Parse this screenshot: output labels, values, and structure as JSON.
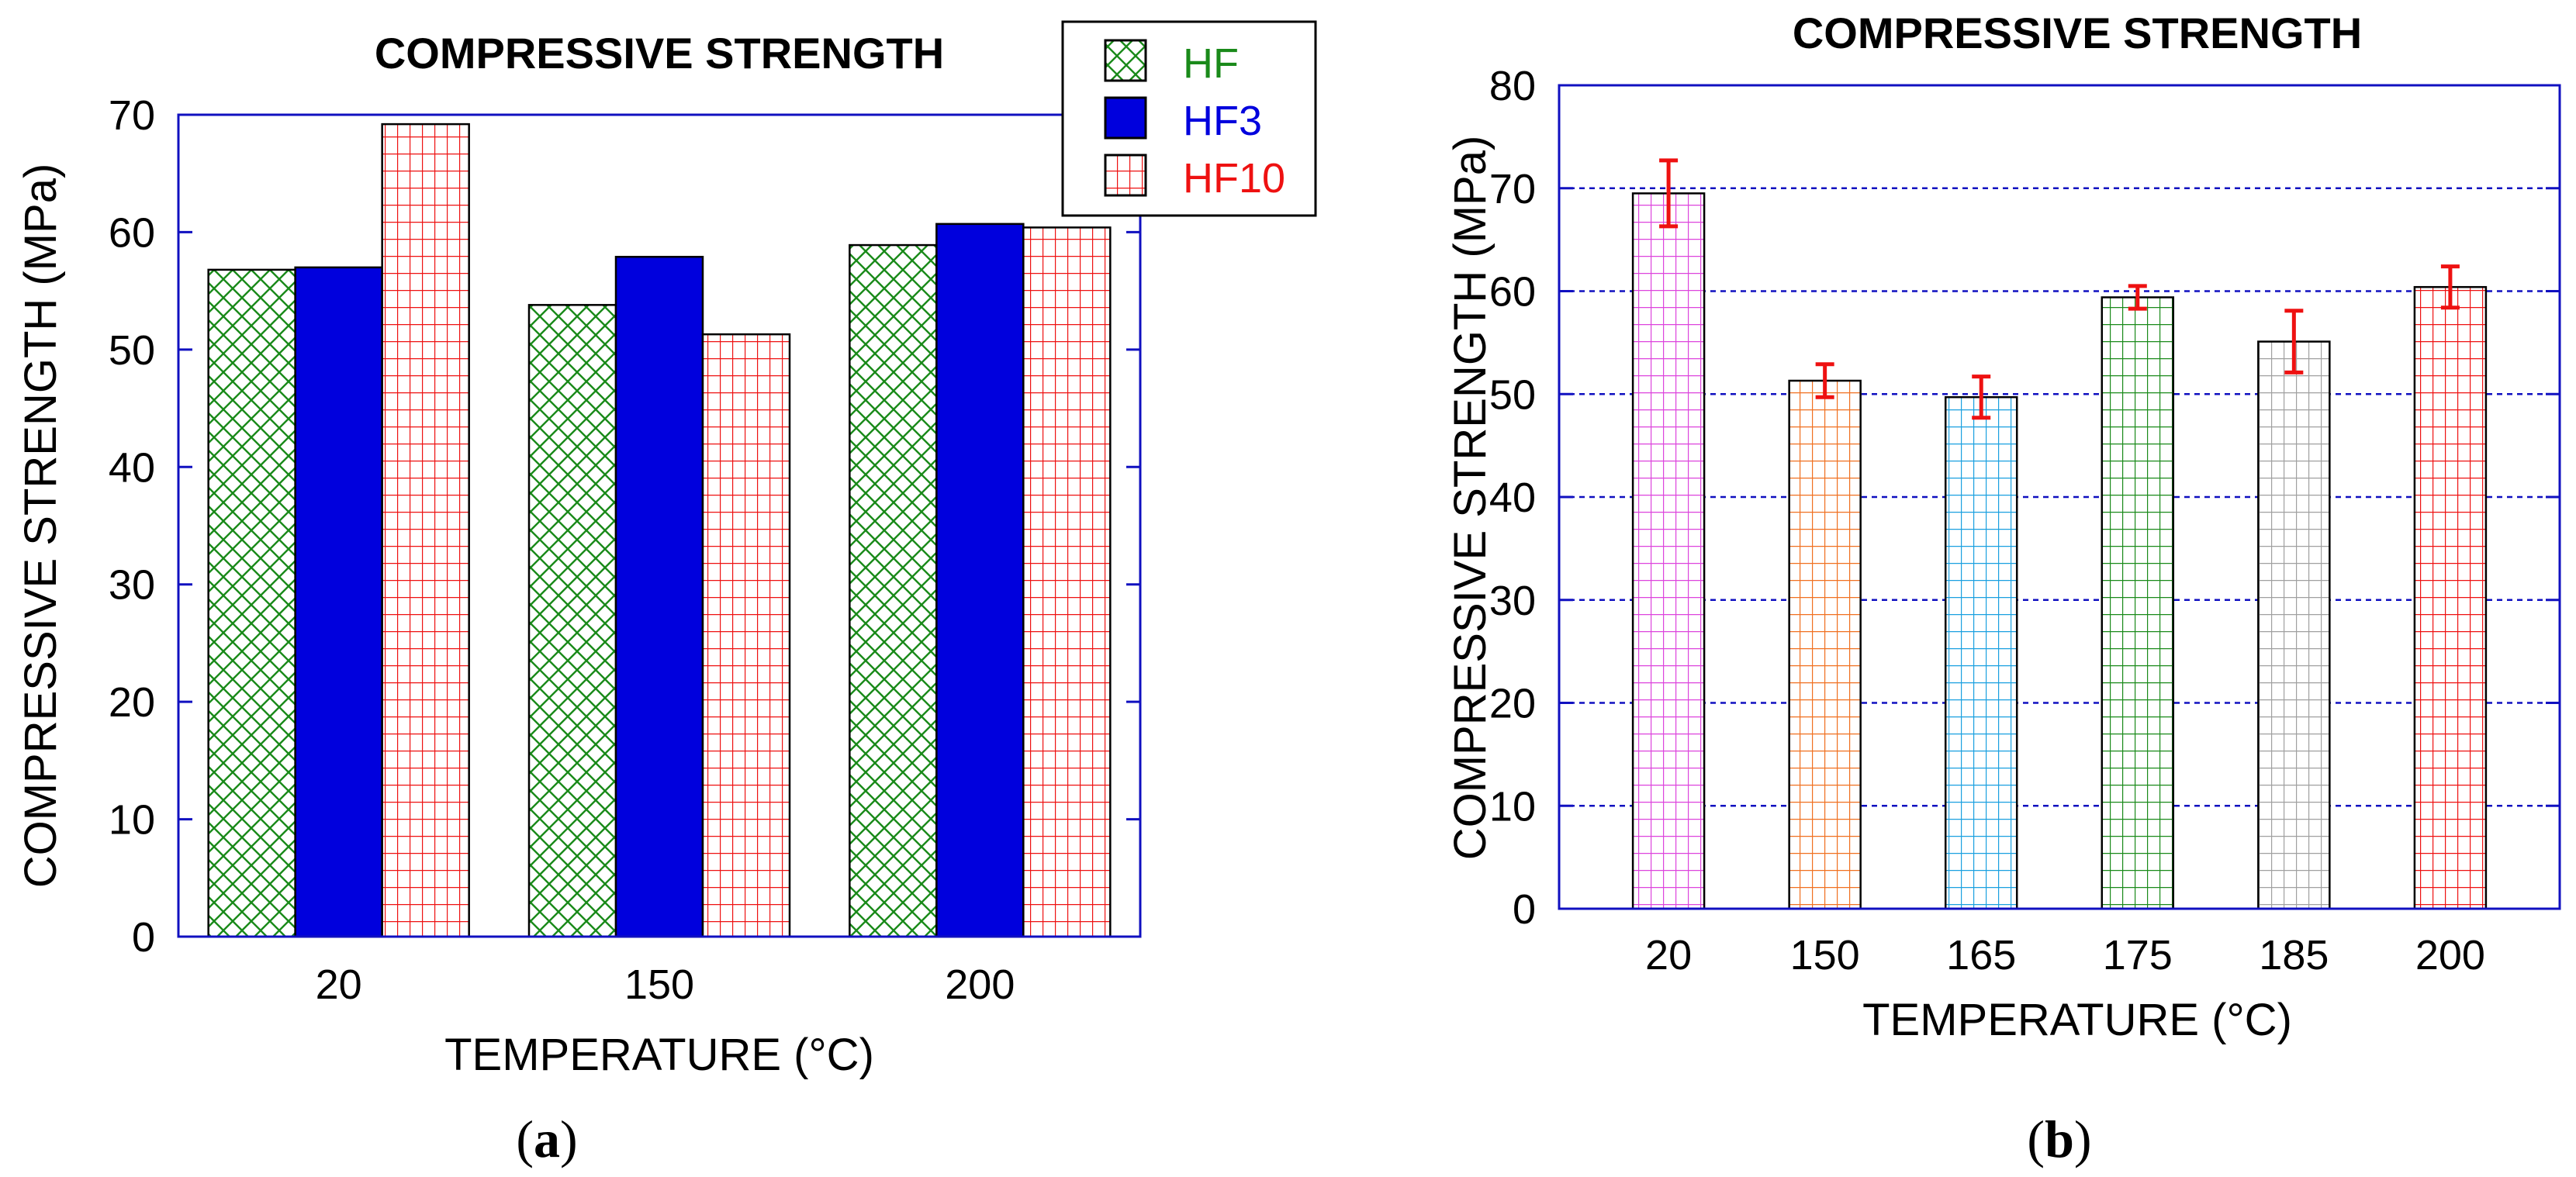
{
  "chart_data": [
    {
      "panel": "a",
      "caption_open": "(",
      "caption_letter": "a",
      "caption_close": ")",
      "type": "bar",
      "title": "COMPRESSIVE STRENGTH",
      "xlabel": "TEMPERATURE (°C)",
      "ylabel": "COMPRESSIVE STRENGTH (MPa)",
      "ylim": [
        0,
        70
      ],
      "yticks": [
        0,
        10,
        20,
        30,
        40,
        50,
        60,
        70
      ],
      "categories": [
        "20",
        "150",
        "200"
      ],
      "legend_position": "top-right",
      "series": [
        {
          "name": "HF",
          "values": [
            56.8,
            53.8,
            58.9
          ],
          "color": "#1a8a1a",
          "pattern": "crosshatch"
        },
        {
          "name": "HF3",
          "values": [
            57.0,
            57.9,
            60.7
          ],
          "color": "#0000dd",
          "pattern": "solid"
        },
        {
          "name": "HF10",
          "values": [
            69.2,
            51.3,
            60.4
          ],
          "color": "#ee1111",
          "pattern": "grid"
        }
      ]
    },
    {
      "panel": "b",
      "caption_open": "(",
      "caption_letter": "b",
      "caption_close": ")",
      "type": "bar",
      "title": "COMPRESSIVE STRENGTH",
      "xlabel": "TEMPERATURE (°C)",
      "ylabel": "COMPRESSIVE STRENGTH (MPa)",
      "ylim": [
        0,
        80
      ],
      "yticks": [
        0,
        10,
        20,
        30,
        40,
        50,
        60,
        70,
        80
      ],
      "grid": true,
      "categories": [
        "20",
        "150",
        "165",
        "175",
        "185",
        "200"
      ],
      "values": [
        69.5,
        51.3,
        49.7,
        59.4,
        55.1,
        60.4
      ],
      "errors": [
        3.2,
        1.6,
        2.0,
        1.1,
        3.0,
        2.0
      ],
      "colors": [
        "#dd44dd",
        "#f07020",
        "#1aa0e0",
        "#1a8a1a",
        "#a0a0a0",
        "#ee1111"
      ],
      "error_color": "#ee1111"
    }
  ]
}
